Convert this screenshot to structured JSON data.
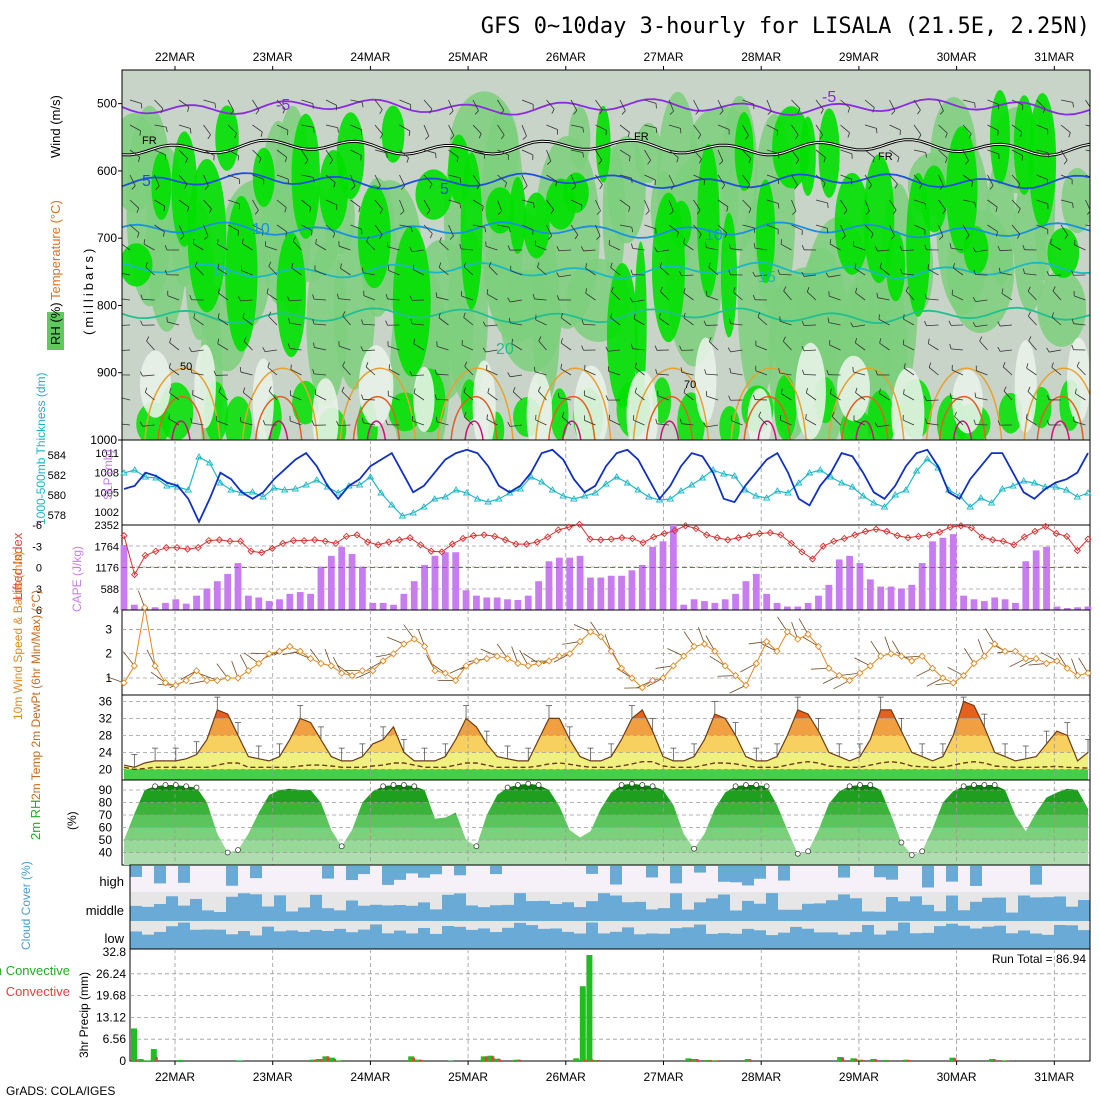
{
  "title": "GFS 0~10day 3-hourly for LISALA (21.5E, 2.25N)",
  "footer": "GrADS: COLA/IGES",
  "dates": [
    "22MAR",
    "23MAR",
    "24MAR",
    "25MAR",
    "26MAR",
    "27MAR",
    "28MAR",
    "29MAR",
    "30MAR",
    "31MAR"
  ],
  "colors": {
    "rh_dark": "#00e000",
    "rh_mid": "#7ccf7c",
    "rh_light": "#c7d3c7",
    "cloud": "#6aaad7",
    "precip": "#22bb22",
    "conv": "#e04040",
    "cape": "#c77cf0"
  },
  "chart_data": [
    {
      "panel": "upper-air",
      "type": "heatmap",
      "side_labels": [
        "RH (%)",
        "Temperature (°C)",
        "Wind (m/s)"
      ],
      "ylabel": "(millibars)",
      "y_ticks": [
        "500",
        "600",
        "700",
        "800",
        "900",
        "1000"
      ],
      "ylim": [
        450,
        1000
      ],
      "isotherm_labels": [
        "-5",
        "FR",
        "FR",
        "FR",
        "-5",
        "5",
        "5",
        "10",
        "10",
        "15",
        "15",
        "20"
      ],
      "contour_labels": [
        "50",
        "70"
      ],
      "isotherms": [
        {
          "name": "-5",
          "level": 505,
          "color": "#8a2be2"
        },
        {
          "name": "FR",
          "level": 565,
          "color": "#000000"
        },
        {
          "name": "5",
          "level": 615,
          "color": "#1e50dc"
        },
        {
          "name": "10",
          "level": 688,
          "color": "#1a90e0"
        },
        {
          "name": "15",
          "level": 748,
          "color": "#1ab8c0"
        },
        {
          "name": "20",
          "level": 815,
          "color": "#20c090"
        }
      ]
    },
    {
      "panel": "slp-thickness",
      "type": "line",
      "ylabel_left": "1000-500mb Thickness (dm)",
      "ylabel_right": "SLP (mb)",
      "left_ticks": [
        "584",
        "582",
        "580",
        "578"
      ],
      "right_ticks": [
        "1011",
        "1008",
        "1005",
        "1002"
      ],
      "ylim_right": [
        1000,
        1013
      ],
      "slp": [
        1005.5,
        1006,
        1008,
        1007.5,
        1006.5,
        1006,
        1004,
        1000.5,
        1004,
        1008,
        1007,
        1005,
        1004,
        1005,
        1007,
        1008.5,
        1010,
        1011,
        1009,
        1006,
        1004,
        1006,
        1007,
        1009,
        1010,
        1011,
        1008,
        1005,
        1006,
        1008,
        1010,
        1011,
        1011.5,
        1011,
        1009,
        1006,
        1005,
        1006,
        1008,
        1011,
        1011.5,
        1010,
        1007,
        1005,
        1006,
        1009,
        1011,
        1011.5,
        1010,
        1007,
        1004,
        1006,
        1009,
        1011,
        1010.5,
        1008,
        1004,
        1003.5,
        1006,
        1008,
        1010,
        1011,
        1008,
        1004,
        1003,
        1006,
        1008,
        1011,
        1010.5,
        1008,
        1005,
        1004,
        1006,
        1009,
        1011,
        1011.5,
        1009,
        1005,
        1004,
        1007,
        1009,
        1011,
        1011,
        1008,
        1005,
        1004,
        1005.5,
        1006.5,
        1007,
        1008,
        1011
      ],
      "thickness": [
        582.2,
        582.5,
        581.8,
        581.7,
        580.9,
        580.8,
        580.5,
        583.8,
        583.2,
        581.2,
        580.5,
        580.2,
        580.3,
        579.8,
        580.7,
        580.5,
        580.6,
        581,
        581.5,
        580.8,
        580.2,
        580.9,
        581,
        581.8,
        580.2,
        579,
        577.9,
        578.2,
        578.8,
        579.6,
        579.8,
        580.5,
        580.2,
        579.6,
        579.3,
        579.6,
        580.2,
        580.6,
        581.8,
        581.3,
        580.5,
        579.9,
        579.6,
        579.9,
        580.2,
        581.1,
        581.8,
        581.2,
        580.5,
        579.8,
        579.5,
        579.6,
        580.4,
        581,
        581.7,
        582.5,
        582.1,
        581.9,
        580.5,
        579.9,
        579.7,
        580.4,
        580.2,
        581.2,
        582.2,
        582.5,
        581.8,
        581.2,
        580.8,
        579.9,
        579.2,
        578.8,
        580,
        580.5,
        582.4,
        583.6,
        582.7,
        580.5,
        579.9,
        578.8,
        579.7,
        579.2,
        580.6,
        580.9,
        581.4,
        581.2,
        580.8,
        580.8,
        580.5,
        579.8,
        580.2
      ]
    },
    {
      "panel": "lifted-index-cape",
      "type": "bar",
      "ylabel_left": "Lifted Index",
      "ylabel_right": "CAPE (J/kg)",
      "li_ticks": [
        "-6",
        "-3",
        "0",
        "3",
        "6"
      ],
      "cape_ticks": [
        "2352",
        "1764",
        "1176",
        "588",
        "4"
      ],
      "ylim_cape": [
        4,
        2352
      ],
      "li_ylim": [
        -6,
        6
      ],
      "cape": [
        1800,
        150,
        60,
        80,
        200,
        300,
        180,
        400,
        600,
        800,
        1000,
        1300,
        400,
        350,
        250,
        300,
        450,
        500,
        450,
        1200,
        1500,
        1750,
        1550,
        1200,
        200,
        200,
        150,
        450,
        800,
        1250,
        1500,
        1600,
        1600,
        550,
        400,
        350,
        350,
        300,
        280,
        400,
        800,
        1350,
        1450,
        1450,
        1500,
        900,
        900,
        950,
        950,
        1100,
        1250,
        1750,
        1900,
        2400,
        150,
        300,
        250,
        200,
        300,
        450,
        800,
        1000,
        450,
        200,
        100,
        100,
        200,
        400,
        700,
        1400,
        1500,
        1300,
        850,
        650,
        650,
        600,
        700,
        1300,
        1900,
        2000,
        2100,
        400,
        300,
        250,
        350,
        300,
        200,
        1350,
        1650,
        1750,
        100,
        60,
        80,
        100
      ],
      "lifted_index": [
        -4.5,
        1,
        -1.7,
        -2.3,
        -2.8,
        -2.8,
        -2.6,
        -2.8,
        -3.8,
        -3.9,
        -3.7,
        -3.7,
        -2.3,
        -2.1,
        -2.7,
        -3.4,
        -3.8,
        -3.8,
        -3.9,
        -3.7,
        -3.4,
        -4.4,
        -4.6,
        -3.6,
        -3.2,
        -3.6,
        -3.9,
        -4.2,
        -3.2,
        -2.3,
        -2.2,
        -3.3,
        -4.1,
        -4.5,
        -4.6,
        -4.4,
        -3.9,
        -3.3,
        -3.3,
        -3.6,
        -4.3,
        -5.3,
        -5.7,
        -6.1,
        -4,
        -3.9,
        -4,
        -4.2,
        -4.1,
        -3.5,
        -4.3,
        -4.8,
        -5.2,
        -5.9,
        -5.5,
        -4.6,
        -4.2,
        -3.9,
        -4.2,
        -4.5,
        -4.8,
        -4.9,
        -4.6,
        -3.4,
        -2.2,
        -1.2,
        -3,
        -3.7,
        -4.1,
        -4.6,
        -5.1,
        -5.4,
        -5.1,
        -4.5,
        -4.2,
        -4.4,
        -4.6,
        -5,
        -5.7,
        -5.9,
        -5.6,
        -4.3,
        -3.9,
        -3.7,
        -3.2,
        -4.3,
        -5.1,
        -5.8,
        -4.8,
        -4.4,
        -2.4,
        -4
      ]
    },
    {
      "panel": "wind-10m",
      "type": "line",
      "ylabel": "10m Wind Speed & Barbs (m/s)",
      "y_ticks": [
        "3",
        "2",
        "1"
      ],
      "ylim": [
        0.3,
        3.8
      ],
      "speed": [
        0.8,
        1.5,
        3.9,
        1.5,
        0.8,
        0.7,
        0.9,
        1.3,
        0.9,
        0.9,
        1,
        1,
        1.3,
        1.6,
        2,
        2.1,
        2.3,
        2.1,
        1.8,
        1.6,
        1.5,
        1.2,
        1.1,
        1.3,
        1.3,
        1.7,
        2,
        2.4,
        2.6,
        2.3,
        1.3,
        1.2,
        0.9,
        1.5,
        1.7,
        1.8,
        1.9,
        1.8,
        1.6,
        1.5,
        1.6,
        1.7,
        1.9,
        2,
        2.5,
        2.9,
        2.7,
        2.1,
        1.4,
        1,
        0.6,
        0.9,
        1,
        1.5,
        1.9,
        2.3,
        2.4,
        2.1,
        1.5,
        1.1,
        0.7,
        1.6,
        2.5,
        2.1,
        2.9,
        2.6,
        2.8,
        2.3,
        1.4,
        1.1,
        0.9,
        1.2,
        1.5,
        1.9,
        2,
        1.9,
        1.7,
        1.9,
        1.4,
        1,
        0.8,
        1.1,
        1.6,
        1.9,
        2.4,
        2.1,
        2.1,
        1.8,
        1.8,
        1.6,
        1.7,
        1.4,
        1.1,
        1.2
      ]
    },
    {
      "panel": "temperature-2m",
      "type": "area",
      "ylabel": "2m Temp 2m DewPt (6hr Min/Max) (°C)",
      "y_ticks": [
        "36",
        "32",
        "28",
        "24",
        "20"
      ],
      "ylim": [
        17.5,
        37.5
      ],
      "temp": [
        21,
        20.5,
        21.5,
        22,
        22,
        22,
        22.5,
        23.5,
        27,
        34,
        33,
        28,
        23,
        22.5,
        22,
        23,
        27,
        32,
        31,
        27,
        23,
        22,
        22,
        23,
        26,
        27,
        30,
        24,
        22,
        22,
        22,
        23,
        27,
        32,
        30,
        26,
        23,
        22.5,
        22,
        22,
        27,
        32,
        32,
        27,
        23,
        22,
        22,
        23,
        27,
        32,
        34,
        29,
        23,
        22,
        22,
        23,
        27,
        33,
        32,
        28,
        23,
        22,
        22,
        23,
        28,
        34,
        33,
        29,
        24,
        23,
        22,
        23,
        27,
        34,
        34,
        29,
        24,
        23,
        22,
        23,
        28,
        36,
        35,
        30,
        24,
        23,
        22,
        22.5,
        23,
        26,
        29,
        28,
        22,
        24
      ],
      "dewpoint": [
        20.5,
        20,
        20.2,
        20.5,
        20.5,
        20.5,
        20.5,
        20.5,
        20.5,
        21,
        21.5,
        21.5,
        20.5,
        20.5,
        20.5,
        20.5,
        20.5,
        20.8,
        21,
        21,
        20.8,
        20.5,
        20.5,
        20.5,
        20.8,
        21,
        21.5,
        21.5,
        21,
        20.5,
        20.5,
        20.5,
        21,
        21.5,
        21.5,
        21,
        20.5,
        20.5,
        20.5,
        20.5,
        20.8,
        21.3,
        21.5,
        21.2,
        20.8,
        20.5,
        20.5,
        20.5,
        20.8,
        21.3,
        21.8,
        21.8,
        20.8,
        20.5,
        20.5,
        20.5,
        21,
        21.5,
        21.5,
        21.3,
        20.8,
        20.5,
        20.5,
        20.5,
        21,
        21.5,
        21.8,
        21.5,
        20.8,
        20.6,
        20.5,
        20.5,
        21,
        21.5,
        21.8,
        21.5,
        20.8,
        20.6,
        20.5,
        20.5,
        21,
        21.5,
        21.8,
        21.5,
        20.8,
        20.6,
        20.5,
        20.5,
        20.5,
        20.6,
        20.7,
        20.5,
        20.4,
        20.3
      ]
    },
    {
      "panel": "rh-2m",
      "type": "area",
      "ylabel": "2m RH",
      "unit": "(%)",
      "y_ticks": [
        "90",
        "80",
        "70",
        "60",
        "50",
        "40"
      ],
      "ylim": [
        30,
        98
      ],
      "rh": [
        50,
        71,
        90,
        93,
        94,
        94,
        93,
        92,
        80,
        55,
        40,
        42,
        55,
        72,
        86,
        90,
        91,
        90,
        90,
        80,
        58,
        45,
        58,
        80,
        89,
        93,
        94,
        94,
        93,
        90,
        67,
        68,
        72,
        50,
        45,
        70,
        86,
        92,
        94,
        95,
        94,
        90,
        77,
        58,
        52,
        57,
        75,
        88,
        94,
        95,
        94,
        93,
        90,
        78,
        55,
        43,
        55,
        75,
        88,
        93,
        94,
        94,
        93,
        78,
        58,
        39,
        41,
        58,
        79,
        89,
        93,
        94,
        94,
        90,
        70,
        48,
        38,
        41,
        59,
        80,
        89,
        93,
        94,
        94,
        94,
        90,
        70,
        57,
        72,
        84,
        88,
        91,
        90,
        75
      ]
    },
    {
      "panel": "cloud-cover",
      "type": "bar",
      "ylabel": "Cloud Cover (%)",
      "levels": [
        "high",
        "middle",
        "low"
      ]
    },
    {
      "panel": "precipitation",
      "type": "bar",
      "ylabel_left": "Total / Rain Convective",
      "ylabel": "3hr Precip (mm)",
      "y_ticks": [
        "32.8",
        "26.24",
        "19.68",
        "13.12",
        "6.56",
        "0"
      ],
      "ylim": [
        0,
        32.8
      ],
      "run_total_label": "Run Total = 86.94",
      "series": [
        {
          "name": "Total",
          "values": [
            9.8,
            0.6,
            0.2,
            3.6,
            0,
            0,
            0,
            0.3,
            0,
            0,
            0,
            0,
            0,
            0,
            0,
            0,
            0.2,
            0,
            0,
            0,
            0,
            0,
            0,
            0,
            0,
            0,
            0,
            0.4,
            0.6,
            1.4,
            1,
            0.2,
            0,
            0,
            0,
            0,
            0,
            0,
            0,
            0,
            0,
            0,
            1.4,
            0.4,
            0,
            0,
            0,
            0,
            0.1,
            0,
            0,
            0,
            0,
            1.4,
            1.6,
            0.7,
            0,
            0,
            0.4,
            0,
            0,
            0,
            0,
            0,
            0,
            0,
            0,
            0.8,
            22.5,
            31.9,
            0.3,
            0,
            0,
            0,
            0,
            0,
            0,
            0,
            0,
            0,
            0,
            0,
            0,
            0,
            0.8,
            0.6,
            0,
            0.3,
            0.2,
            0,
            0,
            0,
            0,
            0.6,
            0,
            0,
            0,
            0,
            0,
            0,
            0,
            0,
            0,
            0,
            0,
            0,
            0,
            1.2,
            0,
            0.8,
            0.4,
            0,
            0.6,
            0,
            0.3,
            0,
            0,
            0.4,
            0,
            0,
            0,
            0,
            0,
            0,
            1.0,
            0,
            0,
            0,
            0,
            0,
            0.6,
            0,
            0.2,
            0,
            0,
            0,
            0,
            0,
            0,
            0,
            0,
            0,
            0,
            0
          ]
        },
        {
          "name": "Convective",
          "values": [
            0.4,
            0,
            0,
            1.2,
            0,
            0,
            0,
            0,
            0,
            0,
            0,
            0,
            0,
            0,
            0,
            0,
            0,
            0,
            0,
            0,
            0,
            0,
            0,
            0,
            0,
            0,
            0,
            0.4,
            0.5,
            1.4,
            0.6,
            0,
            0,
            0,
            0,
            0,
            0,
            0,
            0,
            0,
            0,
            0,
            1.0,
            0.4,
            0,
            0,
            0,
            0,
            0,
            0,
            0,
            0,
            0,
            1.4,
            1.4,
            0.5,
            0,
            0,
            0.4,
            0,
            0,
            0,
            0,
            0,
            0,
            0,
            0,
            0,
            0.4,
            0.5,
            0.3,
            0,
            0,
            0,
            0,
            0,
            0,
            0,
            0,
            0,
            0,
            0,
            0,
            0,
            0.6,
            0.5,
            0,
            0.3,
            0.2,
            0,
            0,
            0,
            0,
            0.4,
            0,
            0,
            0,
            0,
            0,
            0,
            0,
            0,
            0,
            0,
            0,
            0,
            0,
            1.0,
            0,
            0.7,
            0.3,
            0,
            0.5,
            0,
            0.2,
            0,
            0,
            0.3,
            0,
            0,
            0,
            0,
            0,
            0,
            0.8,
            0,
            0,
            0,
            0,
            0,
            0.5,
            0,
            0.2,
            0,
            0,
            0,
            0,
            0,
            0,
            0,
            0,
            0,
            0,
            0
          ]
        }
      ]
    }
  ]
}
